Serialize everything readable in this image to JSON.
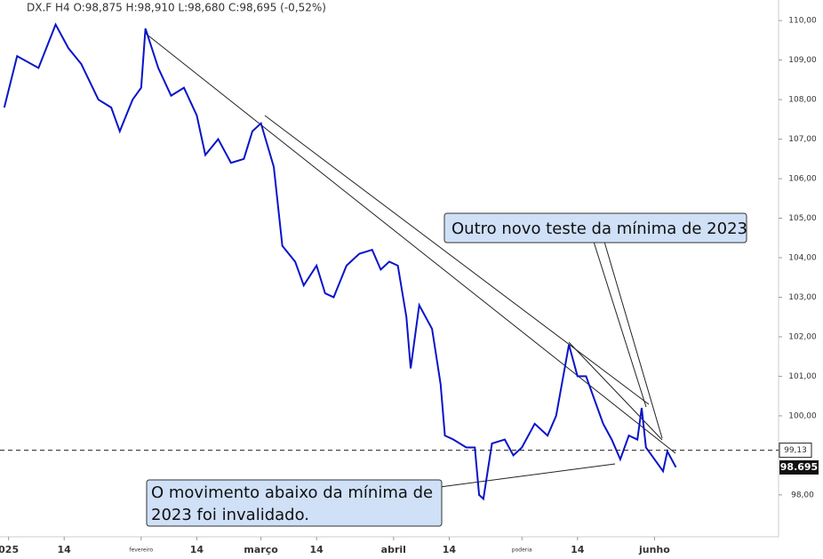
{
  "chart_data": {
    "type": "line",
    "title": "DX.F H4 O:98,875 H:98,910 L:98,680 C:98,695 (-0,52%)",
    "x": [
      0,
      3,
      8,
      12,
      15,
      18,
      22,
      25,
      27,
      30,
      32,
      33,
      36,
      39,
      42,
      45,
      47,
      50,
      53,
      56,
      58,
      60,
      63,
      65,
      68,
      70,
      73,
      75,
      77,
      80,
      83,
      86,
      88,
      90,
      92,
      94,
      95,
      97,
      100,
      102,
      103,
      105,
      108,
      110,
      111,
      112,
      114,
      117,
      119,
      121,
      124,
      127,
      129,
      131,
      132,
      134,
      136,
      138,
      140,
      142,
      144,
      146,
      148,
      149,
      150,
      152,
      154,
      155,
      157
    ],
    "series": [
      {
        "name": "DX.F",
        "color": "#0a14c8",
        "values": [
          107.8,
          109.1,
          108.8,
          109.9,
          109.3,
          108.9,
          108.0,
          107.8,
          107.2,
          108.0,
          108.3,
          109.8,
          108.8,
          108.1,
          108.3,
          107.6,
          106.6,
          107.0,
          106.4,
          106.5,
          107.2,
          107.4,
          106.3,
          104.3,
          103.9,
          103.3,
          103.8,
          103.1,
          103.0,
          103.8,
          104.1,
          104.2,
          103.7,
          103.9,
          103.8,
          102.5,
          101.2,
          102.8,
          102.2,
          100.8,
          99.5,
          99.4,
          99.2,
          99.2,
          98.0,
          97.9,
          99.3,
          99.4,
          99.0,
          99.2,
          99.8,
          99.5,
          100.0,
          101.2,
          101.8,
          101.0,
          101.0,
          100.4,
          99.8,
          99.4,
          98.9,
          99.5,
          99.4,
          100.2,
          99.2,
          98.9,
          98.6,
          99.1,
          98.7
        ]
      }
    ],
    "xlim": [
      -1,
      181
    ],
    "xticks": [
      {
        "value": 1,
        "label": "025"
      },
      {
        "value": 14,
        "label": "14"
      },
      {
        "value": 32,
        "label": "fevereiro"
      },
      {
        "value": 45,
        "label": "14"
      },
      {
        "value": 60,
        "label": "março"
      },
      {
        "value": 73,
        "label": "14"
      },
      {
        "value": 91,
        "label": "abril"
      },
      {
        "value": 104,
        "label": "14"
      },
      {
        "value": 121,
        "label": "poderia"
      },
      {
        "value": 134,
        "label": "14"
      },
      {
        "value": 152,
        "label": "junho"
      }
    ],
    "ylim": [
      97.03,
      110.52
    ],
    "yticks": [
      {
        "value": 98,
        "label": "98,00"
      },
      {
        "value": 100,
        "label": "100,00"
      },
      {
        "value": 101,
        "label": "101,00"
      },
      {
        "value": 102,
        "label": "102,00"
      },
      {
        "value": 103,
        "label": "103,00"
      },
      {
        "value": 104,
        "label": "104,00"
      },
      {
        "value": 105,
        "label": "105,00"
      },
      {
        "value": 106,
        "label": "106,00"
      },
      {
        "value": 107,
        "label": "107,00"
      },
      {
        "value": 108,
        "label": "108,00"
      },
      {
        "value": 109,
        "label": "109,00"
      },
      {
        "value": 110,
        "label": "110,00"
      }
    ],
    "reference_line": {
      "value": 99.13,
      "label": "99,13"
    },
    "current_price": {
      "value": 98.695,
      "label": "98.695"
    },
    "annotations": [
      "Outro novo teste da mínima de 2023",
      "O movimento abaixo da mínima de",
      "2023 foi invalidado."
    ]
  }
}
